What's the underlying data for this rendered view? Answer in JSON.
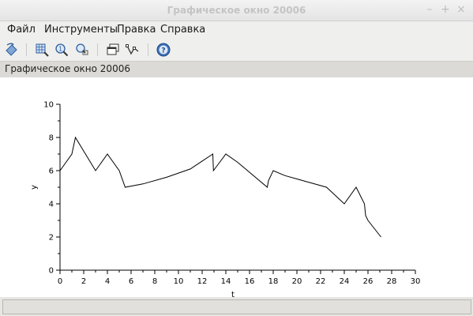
{
  "window": {
    "title": "Графическое окно 20006",
    "minimize_glyph": "–",
    "maximize_glyph": "+",
    "close_glyph": "×"
  },
  "menu": {
    "file": "Файл",
    "tools": "Инструменты",
    "edit": "Правка",
    "help": "Справка"
  },
  "toolbar": {
    "icons": [
      "rotate-icon",
      "zoom-grid-icon",
      "zoom-in-icon",
      "zoom-area-icon",
      "windows-icon",
      "data-tip-icon",
      "help-icon"
    ]
  },
  "info_bar": {
    "text": "Графическое окно 20006"
  },
  "chart_data": {
    "type": "line",
    "xlabel": "t",
    "ylabel": "y",
    "xlim": [
      0,
      30
    ],
    "ylim": [
      0,
      10
    ],
    "x_ticks": [
      "0",
      "2",
      "4",
      "6",
      "8",
      "10",
      "12",
      "14",
      "16",
      "18",
      "20",
      "22",
      "24",
      "26",
      "28",
      "30"
    ],
    "y_ticks": [
      "0",
      "2",
      "4",
      "6",
      "8",
      "10"
    ],
    "grid": false,
    "series": [
      {
        "color": "#000000",
        "x": [
          0,
          1,
          1.3,
          3,
          4,
          5,
          5.5,
          7,
          9,
          11,
          12.9,
          12.95,
          14,
          15,
          17.5,
          17.6,
          18,
          19,
          20.5,
          22.5,
          24,
          25,
          25.7,
          25.8,
          26,
          27.1
        ],
        "y": [
          6,
          7,
          8,
          6,
          7,
          6,
          5,
          5.2,
          5.6,
          6.1,
          7,
          6,
          7,
          6.5,
          5,
          5.4,
          6,
          5.7,
          5.4,
          5,
          4,
          5,
          4,
          3.3,
          3,
          2
        ]
      }
    ]
  }
}
